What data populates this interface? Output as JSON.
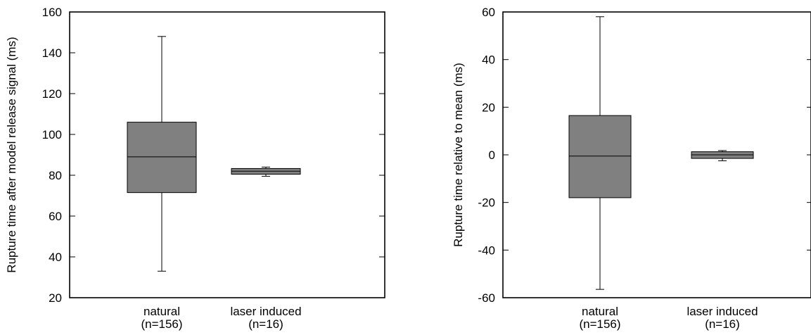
{
  "colors": {
    "box_fill": "#808080",
    "stroke": "#000000",
    "background": "#ffffff"
  },
  "chart_data": [
    {
      "type": "box",
      "title": "",
      "xlabel": "",
      "ylabel": "Rupture time after model release signal (ms)",
      "ylim": [
        20,
        160
      ],
      "yticks": [
        20,
        40,
        60,
        80,
        100,
        120,
        140,
        160
      ],
      "grid": false,
      "categories": [
        {
          "label": "natural",
          "sublabel": "(n=156)",
          "min": 33,
          "q1": 71.5,
          "median": 89,
          "q3": 106,
          "max": 148
        },
        {
          "label": "laser induced",
          "sublabel": "(n=16)",
          "min": 79.5,
          "q1": 80.5,
          "median": 82,
          "q3": 83.3,
          "max": 84
        }
      ]
    },
    {
      "type": "box",
      "title": "",
      "xlabel": "",
      "ylabel": "Rupture time relative to mean (ms)",
      "ylim": [
        -60,
        60
      ],
      "yticks": [
        -60,
        -40,
        -20,
        0,
        20,
        40,
        60
      ],
      "grid": false,
      "categories": [
        {
          "label": "natural",
          "sublabel": "(n=156)",
          "min": -56.5,
          "q1": -18,
          "median": -0.5,
          "q3": 16.5,
          "max": 58
        },
        {
          "label": "laser induced",
          "sublabel": "(n=16)",
          "min": -2.5,
          "q1": -1.5,
          "median": 0,
          "q3": 1.3,
          "max": 1.8
        }
      ]
    }
  ]
}
